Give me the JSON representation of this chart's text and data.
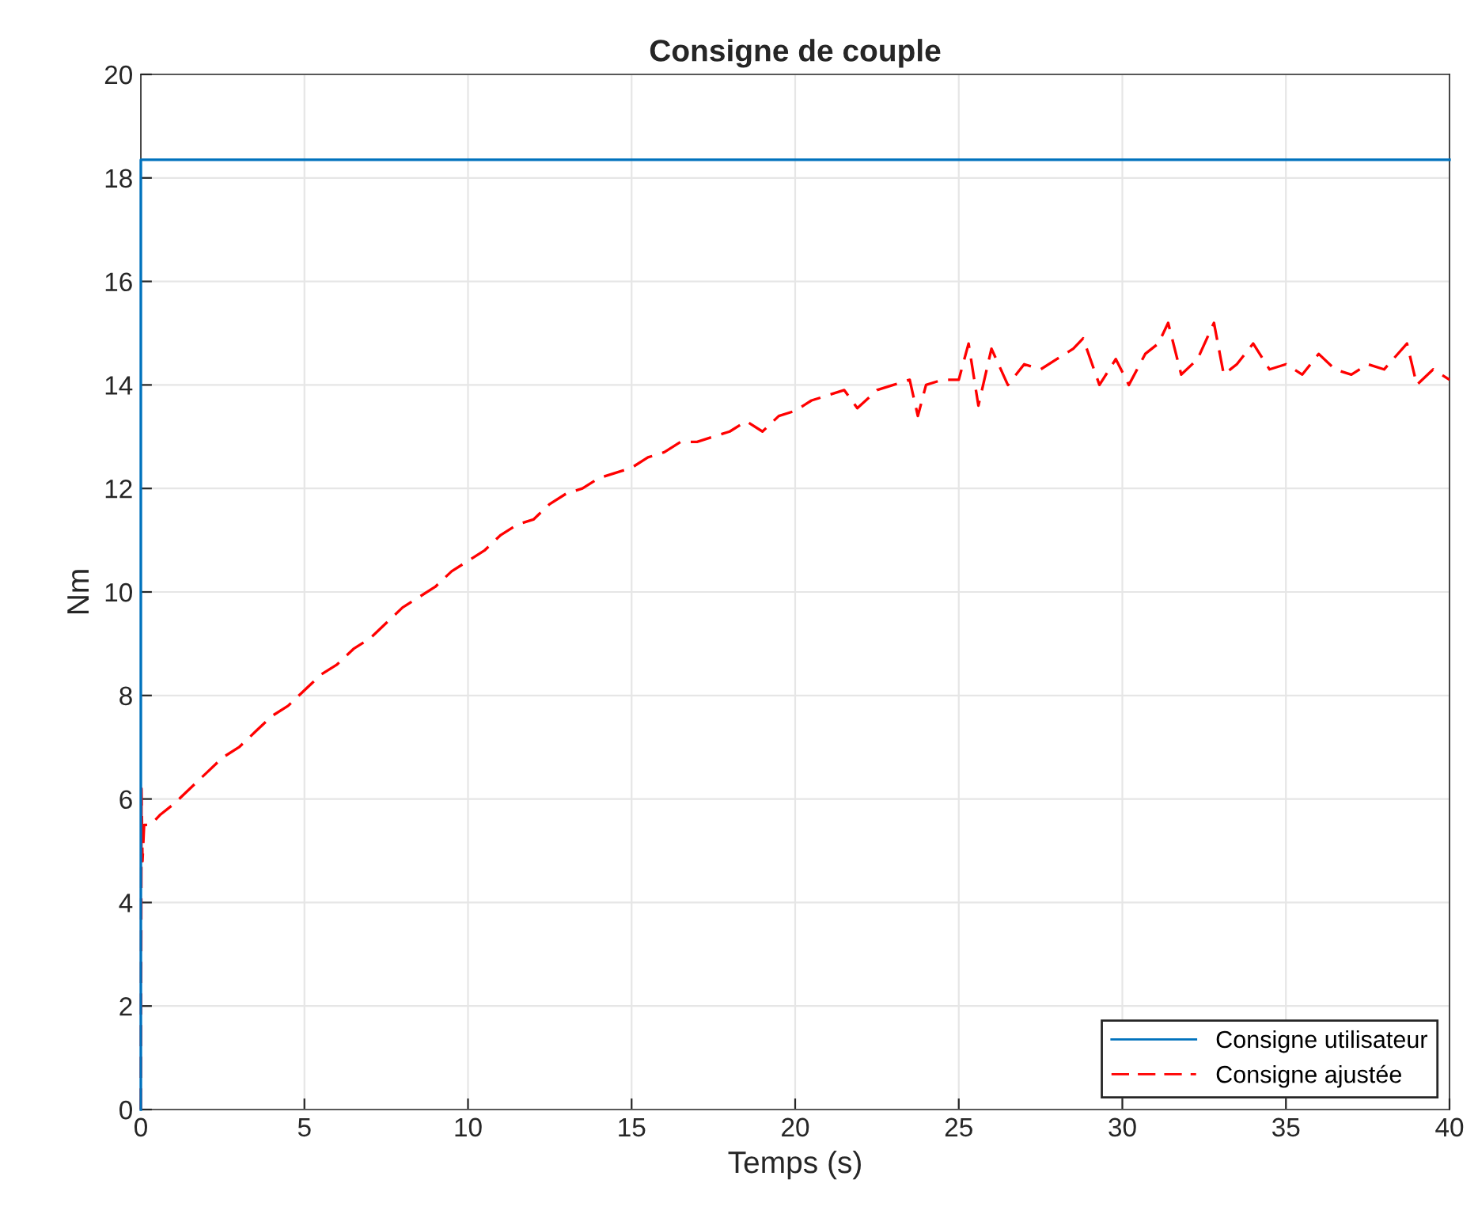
{
  "chart_data": {
    "type": "line",
    "title": "Consigne de couple",
    "xlabel": "Temps (s)",
    "ylabel": "Nm",
    "xlim": [
      0,
      40
    ],
    "ylim": [
      0,
      20
    ],
    "xticks": [
      0,
      5,
      10,
      15,
      20,
      25,
      30,
      35,
      40
    ],
    "yticks": [
      0,
      2,
      4,
      6,
      8,
      10,
      12,
      14,
      16,
      18,
      20
    ],
    "grid": true,
    "legend": "bottom right",
    "series": [
      {
        "name": "Consigne utilisateur",
        "color": "#0072bd",
        "line_style": "solid",
        "x": [
          0,
          0,
          5,
          10,
          15,
          20,
          25,
          30,
          35,
          40
        ],
        "values": [
          0,
          18.35,
          18.35,
          18.35,
          18.35,
          18.35,
          18.35,
          18.35,
          18.35,
          18.35
        ]
      },
      {
        "name": "Consigne ajustée",
        "color": "#ff0000",
        "line_style": "dashed",
        "x": [
          0,
          0.02,
          0.05,
          0.1,
          0.3,
          0.6,
          1,
          1.5,
          2,
          2.5,
          3,
          3.5,
          4,
          4.5,
          5,
          5.5,
          6,
          6.5,
          7,
          7.5,
          8,
          8.5,
          9,
          9.5,
          10,
          10.5,
          11,
          11.5,
          12,
          12.5,
          13,
          13.5,
          14,
          14.5,
          15,
          15.5,
          16,
          16.5,
          17,
          17.5,
          18,
          18.5,
          19,
          19.5,
          20,
          20.5,
          21,
          21.5,
          21.9,
          22.5,
          23,
          23.5,
          23.75,
          24,
          24.5,
          25,
          25.3,
          25.6,
          26,
          26.5,
          27,
          27.5,
          28,
          28.5,
          28.8,
          29.3,
          29.8,
          30.2,
          30.7,
          31.1,
          31.4,
          31.8,
          32.3,
          32.8,
          33.1,
          33.5,
          34,
          34.5,
          35,
          35.5,
          36,
          36.5,
          37,
          37.5,
          38,
          38.7,
          39,
          39.5,
          40
        ],
        "values": [
          0,
          6.2,
          4.8,
          5.5,
          5.5,
          5.7,
          5.9,
          6.2,
          6.5,
          6.8,
          7.0,
          7.3,
          7.6,
          7.8,
          8.1,
          8.4,
          8.6,
          8.9,
          9.1,
          9.4,
          9.7,
          9.9,
          10.1,
          10.4,
          10.6,
          10.8,
          11.1,
          11.3,
          11.4,
          11.7,
          11.9,
          12.0,
          12.2,
          12.3,
          12.4,
          12.6,
          12.7,
          12.9,
          12.9,
          13.0,
          13.1,
          13.3,
          13.1,
          13.4,
          13.5,
          13.7,
          13.8,
          13.9,
          13.55,
          13.9,
          14.0,
          14.1,
          13.4,
          14.0,
          14.1,
          14.1,
          14.8,
          13.6,
          14.7,
          14.0,
          14.4,
          14.3,
          14.5,
          14.7,
          14.9,
          14.0,
          14.5,
          14.0,
          14.6,
          14.8,
          15.2,
          14.2,
          14.5,
          15.2,
          14.2,
          14.4,
          14.8,
          14.3,
          14.4,
          14.2,
          14.6,
          14.3,
          14.2,
          14.4,
          14.3,
          14.8,
          14.0,
          14.3,
          14.1
        ]
      }
    ]
  }
}
